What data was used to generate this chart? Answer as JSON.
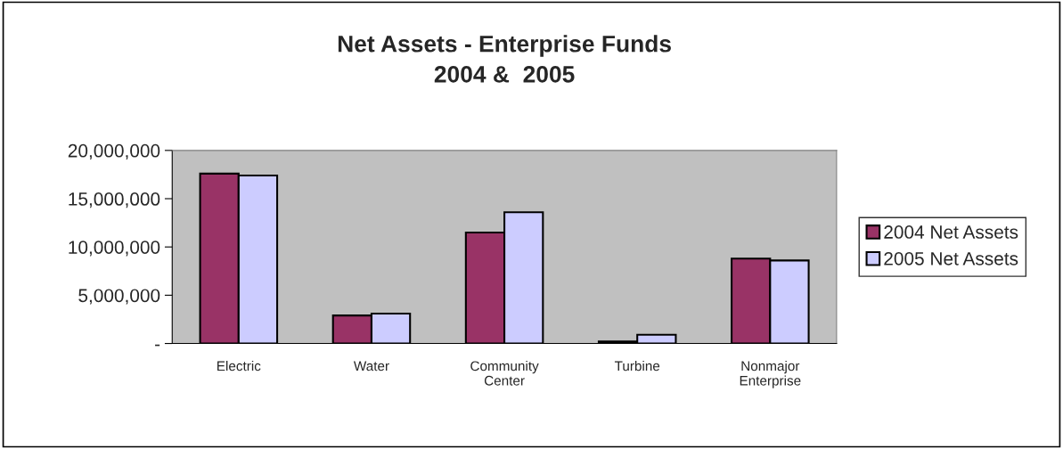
{
  "chart_data": {
    "type": "bar",
    "title": "Net Assets - Enterprise Funds\n2004 &  2005",
    "categories": [
      "Electric",
      "Water",
      "Community\nCenter",
      "Turbine",
      "Nonmajor\nEnterprise"
    ],
    "series": [
      {
        "name": "2004 Net Assets",
        "color": "#993366",
        "values": [
          17600000,
          2900000,
          11500000,
          200000,
          8800000
        ]
      },
      {
        "name": "2005 Net Assets",
        "color": "#ccccff",
        "values": [
          17400000,
          3100000,
          13600000,
          900000,
          8600000
        ]
      }
    ],
    "ylim": [
      0,
      20000000
    ],
    "yticks": [
      {
        "value": 0,
        "label": "-"
      },
      {
        "value": 5000000,
        "label": "5,000,000"
      },
      {
        "value": 10000000,
        "label": "10,000,000"
      },
      {
        "value": 15000000,
        "label": "15,000,000"
      },
      {
        "value": 20000000,
        "label": "20,000,000"
      }
    ],
    "grid": false,
    "legend": "right"
  }
}
